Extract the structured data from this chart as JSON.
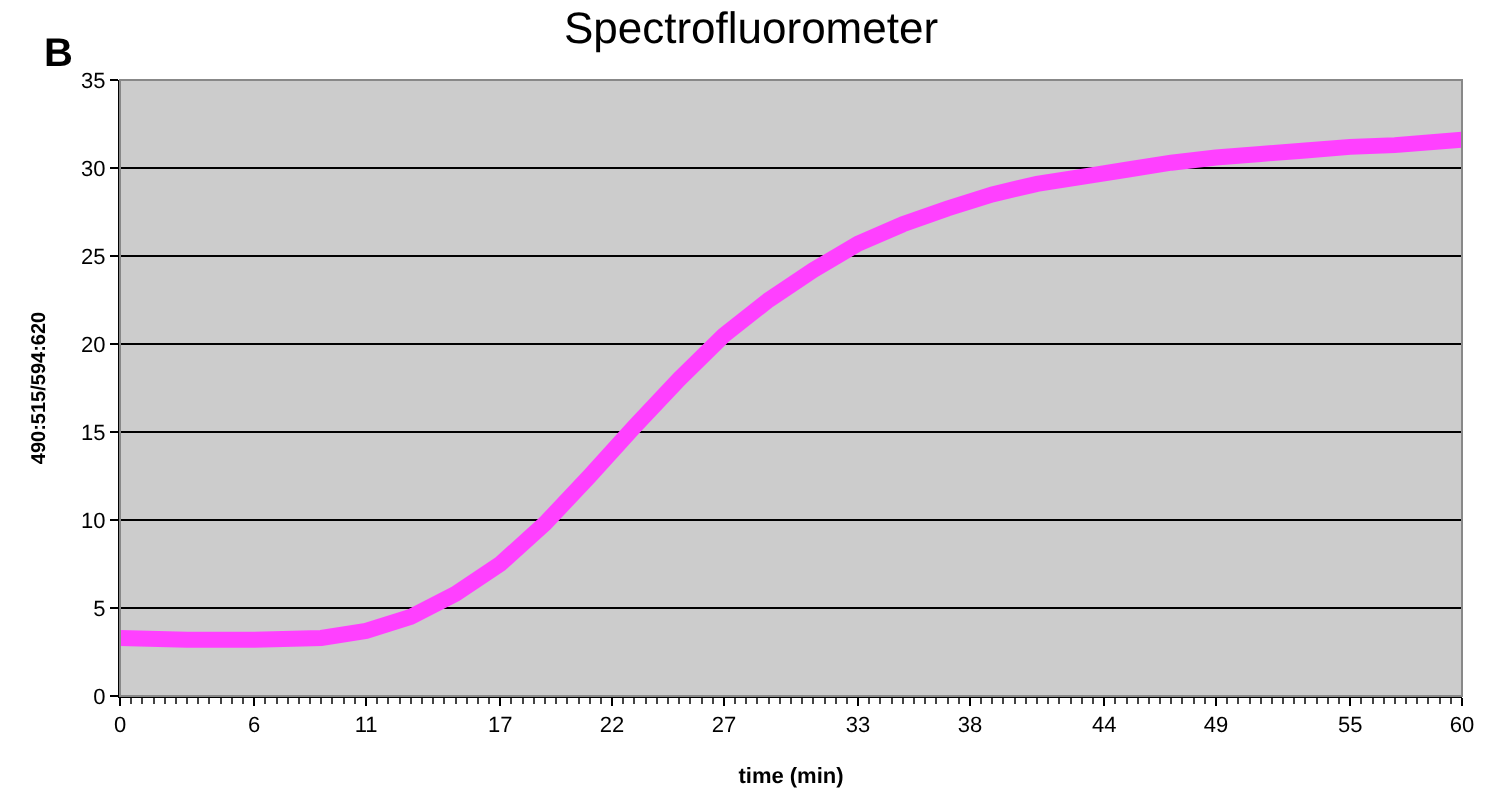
{
  "chart_data": {
    "type": "line",
    "title": "Spectrofluorometer",
    "annotations": [
      "B"
    ],
    "xlabel": "time (min)",
    "ylabel": "490:515/594:620",
    "x": [
      0,
      3,
      6,
      9,
      11,
      13,
      15,
      17,
      19,
      21,
      23,
      25,
      27,
      29,
      31,
      33,
      35,
      37,
      39,
      41,
      43,
      45,
      47,
      49,
      51,
      53,
      55,
      57,
      60
    ],
    "series": [
      {
        "color": "#ff40ff",
        "values": [
          3.3,
          3.2,
          3.2,
          3.3,
          3.7,
          4.5,
          5.8,
          7.5,
          9.8,
          12.5,
          15.3,
          18,
          20.5,
          22.5,
          24.2,
          25.7,
          26.8,
          27.7,
          28.5,
          29.1,
          29.5,
          29.9,
          30.3,
          30.6,
          30.8,
          31.0,
          31.2,
          31.3,
          31.6
        ]
      }
    ],
    "xlim": [
      0,
      60
    ],
    "xticks": [
      0,
      6,
      11,
      17,
      22,
      27,
      33,
      38,
      44,
      49,
      55,
      60
    ],
    "ylim": [
      0,
      35
    ],
    "yticks": [
      0,
      5,
      10,
      15,
      20,
      25,
      30,
      35
    ],
    "grid": "y",
    "legend": false,
    "line_style": "solid"
  }
}
